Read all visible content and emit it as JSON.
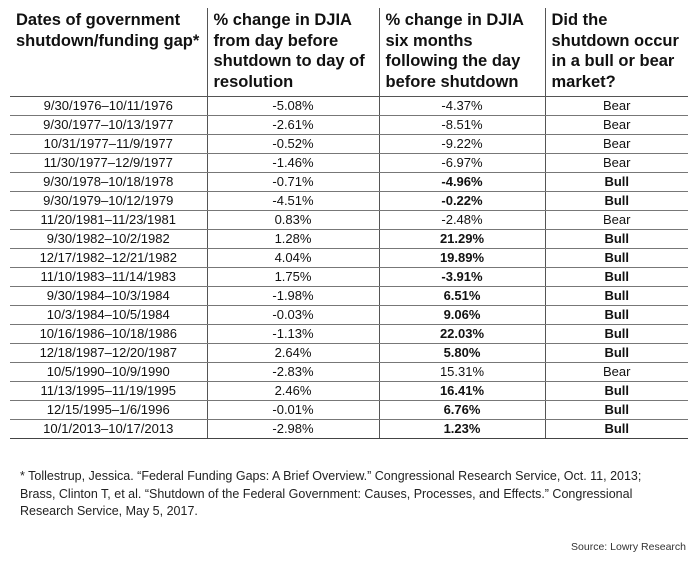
{
  "table": {
    "headers": [
      "Dates of government shutdown/funding gap*",
      "% change in DJIA from day before shutdown to day of resolution",
      "% change in DJIA six months following the day before shutdown",
      "Did the shutdown occur in a bull or bear market?"
    ],
    "rows": [
      {
        "dates": "9/30/1976–10/11/1976",
        "change_resolution": "-5.08%",
        "change_six_months": "-4.37%",
        "market": "Bear",
        "bold": false
      },
      {
        "dates": "9/30/1977–10/13/1977",
        "change_resolution": "-2.61%",
        "change_six_months": "-8.51%",
        "market": "Bear",
        "bold": false
      },
      {
        "dates": "10/31/1977–11/9/1977",
        "change_resolution": "-0.52%",
        "change_six_months": "-9.22%",
        "market": "Bear",
        "bold": false
      },
      {
        "dates": "11/30/1977–12/9/1977",
        "change_resolution": "-1.46%",
        "change_six_months": "-6.97%",
        "market": "Bear",
        "bold": false
      },
      {
        "dates": "9/30/1978–10/18/1978",
        "change_resolution": "-0.71%",
        "change_six_months": "-4.96%",
        "market": "Bull",
        "bold": true
      },
      {
        "dates": "9/30/1979–10/12/1979",
        "change_resolution": "-4.51%",
        "change_six_months": "-0.22%",
        "market": "Bull",
        "bold": true
      },
      {
        "dates": "11/20/1981–11/23/1981",
        "change_resolution": "0.83%",
        "change_six_months": "-2.48%",
        "market": "Bear",
        "bold": false
      },
      {
        "dates": "9/30/1982–10/2/1982",
        "change_resolution": "1.28%",
        "change_six_months": "21.29%",
        "market": "Bull",
        "bold": true
      },
      {
        "dates": "12/17/1982–12/21/1982",
        "change_resolution": "4.04%",
        "change_six_months": "19.89%",
        "market": "Bull",
        "bold": true
      },
      {
        "dates": "11/10/1983–11/14/1983",
        "change_resolution": "1.75%",
        "change_six_months": "-3.91%",
        "market": "Bull",
        "bold": true
      },
      {
        "dates": "9/30/1984–10/3/1984",
        "change_resolution": "-1.98%",
        "change_six_months": "6.51%",
        "market": "Bull",
        "bold": true
      },
      {
        "dates": "10/3/1984–10/5/1984",
        "change_resolution": "-0.03%",
        "change_six_months": "9.06%",
        "market": "Bull",
        "bold": true
      },
      {
        "dates": "10/16/1986–10/18/1986",
        "change_resolution": "-1.13%",
        "change_six_months": "22.03%",
        "market": "Bull",
        "bold": true
      },
      {
        "dates": "12/18/1987–12/20/1987",
        "change_resolution": "2.64%",
        "change_six_months": "5.80%",
        "market": "Bull",
        "bold": true
      },
      {
        "dates": "10/5/1990–10/9/1990",
        "change_resolution": "-2.83%",
        "change_six_months": "15.31%",
        "market": "Bear",
        "bold": false
      },
      {
        "dates": "11/13/1995–11/19/1995",
        "change_resolution": "2.46%",
        "change_six_months": "16.41%",
        "market": "Bull",
        "bold": true
      },
      {
        "dates": "12/15/1995–1/6/1996",
        "change_resolution": "-0.01%",
        "change_six_months": "6.76%",
        "market": "Bull",
        "bold": true
      },
      {
        "dates": "10/1/2013–10/17/2013",
        "change_resolution": "-2.98%",
        "change_six_months": "1.23%",
        "market": "Bull",
        "bold": true
      }
    ]
  },
  "footnote": "* Tollestrup, Jessica. “Federal Funding Gaps: A Brief Overview.” Congressional Research Service, Oct. 11, 2013; Brass, Clinton T, et al. “Shutdown of the Federal Government: Causes, Processes, and Effects.” Congressional Research Service, May 5, 2017.",
  "source": "Source: Lowry Research"
}
